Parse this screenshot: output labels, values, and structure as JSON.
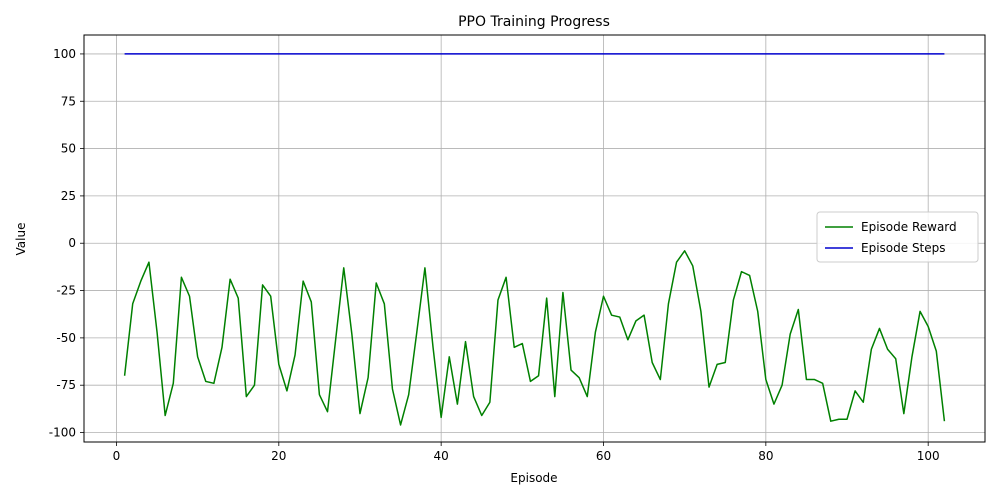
{
  "chart_data": {
    "type": "line",
    "title": "PPO Training Progress",
    "xlabel": "Episode",
    "ylabel": "Value",
    "xlim": [
      -4,
      107
    ],
    "ylim": [
      -105,
      110
    ],
    "xticks": [
      0,
      20,
      40,
      60,
      80,
      100
    ],
    "yticks": [
      -100,
      -75,
      -50,
      -25,
      0,
      25,
      50,
      75,
      100
    ],
    "grid": true,
    "legend": "center-right",
    "x": [
      1,
      2,
      3,
      4,
      5,
      6,
      7,
      8,
      9,
      10,
      11,
      12,
      13,
      14,
      15,
      16,
      17,
      18,
      19,
      20,
      21,
      22,
      23,
      24,
      25,
      26,
      27,
      28,
      29,
      30,
      31,
      32,
      33,
      34,
      35,
      36,
      37,
      38,
      39,
      40,
      41,
      42,
      43,
      44,
      45,
      46,
      47,
      48,
      49,
      50,
      51,
      52,
      53,
      54,
      55,
      56,
      57,
      58,
      59,
      60,
      61,
      62,
      63,
      64,
      65,
      66,
      67,
      68,
      69,
      70,
      71,
      72,
      73,
      74,
      75,
      76,
      77,
      78,
      79,
      80,
      81,
      82,
      83,
      84,
      85,
      86,
      87,
      88,
      89,
      90,
      91,
      92,
      93,
      94,
      95,
      96,
      97,
      98,
      99,
      100,
      101,
      102
    ],
    "series": [
      {
        "name": "Episode Reward",
        "color": "#008000",
        "values": [
          -70,
          -32,
          -20,
          -10,
          -47,
          -91,
          -74,
          -18,
          -28,
          -60,
          -73,
          -74,
          -55,
          -19,
          -29,
          -81,
          -75,
          -22,
          -28,
          -64,
          -78,
          -59,
          -20,
          -31,
          -80,
          -89,
          -51,
          -13,
          -48,
          -90,
          -71,
          -21,
          -32,
          -77,
          -96,
          -80,
          -47,
          -13,
          -55,
          -92,
          -60,
          -85,
          -52,
          -81,
          -91,
          -84,
          -30,
          -18,
          -55,
          -53,
          -73,
          -70,
          -29,
          -81,
          -26,
          -67,
          -71,
          -81,
          -47,
          -28,
          -38,
          -39,
          -51,
          -41,
          -38,
          -63,
          -72,
          -32,
          -10,
          -4,
          -12,
          -36,
          -76,
          -64,
          -63,
          -30,
          -15,
          -17,
          -36,
          -72,
          -85,
          -75,
          -48,
          -35,
          -72,
          -72,
          -74,
          -94,
          -93,
          -93,
          -78,
          -84,
          -56,
          -45,
          -56,
          -61,
          -90,
          -60,
          -36,
          -44,
          -57,
          -94
        ]
      },
      {
        "name": "Episode Steps",
        "color": "#0000cd",
        "values": [
          100,
          100,
          100,
          100,
          100,
          100,
          100,
          100,
          100,
          100,
          100,
          100,
          100,
          100,
          100,
          100,
          100,
          100,
          100,
          100,
          100,
          100,
          100,
          100,
          100,
          100,
          100,
          100,
          100,
          100,
          100,
          100,
          100,
          100,
          100,
          100,
          100,
          100,
          100,
          100,
          100,
          100,
          100,
          100,
          100,
          100,
          100,
          100,
          100,
          100,
          100,
          100,
          100,
          100,
          100,
          100,
          100,
          100,
          100,
          100,
          100,
          100,
          100,
          100,
          100,
          100,
          100,
          100,
          100,
          100,
          100,
          100,
          100,
          100,
          100,
          100,
          100,
          100,
          100,
          100,
          100,
          100,
          100,
          100,
          100,
          100,
          100,
          100,
          100,
          100,
          100,
          100,
          100,
          100,
          100,
          100,
          100,
          100,
          100,
          100,
          100,
          100
        ]
      }
    ]
  }
}
